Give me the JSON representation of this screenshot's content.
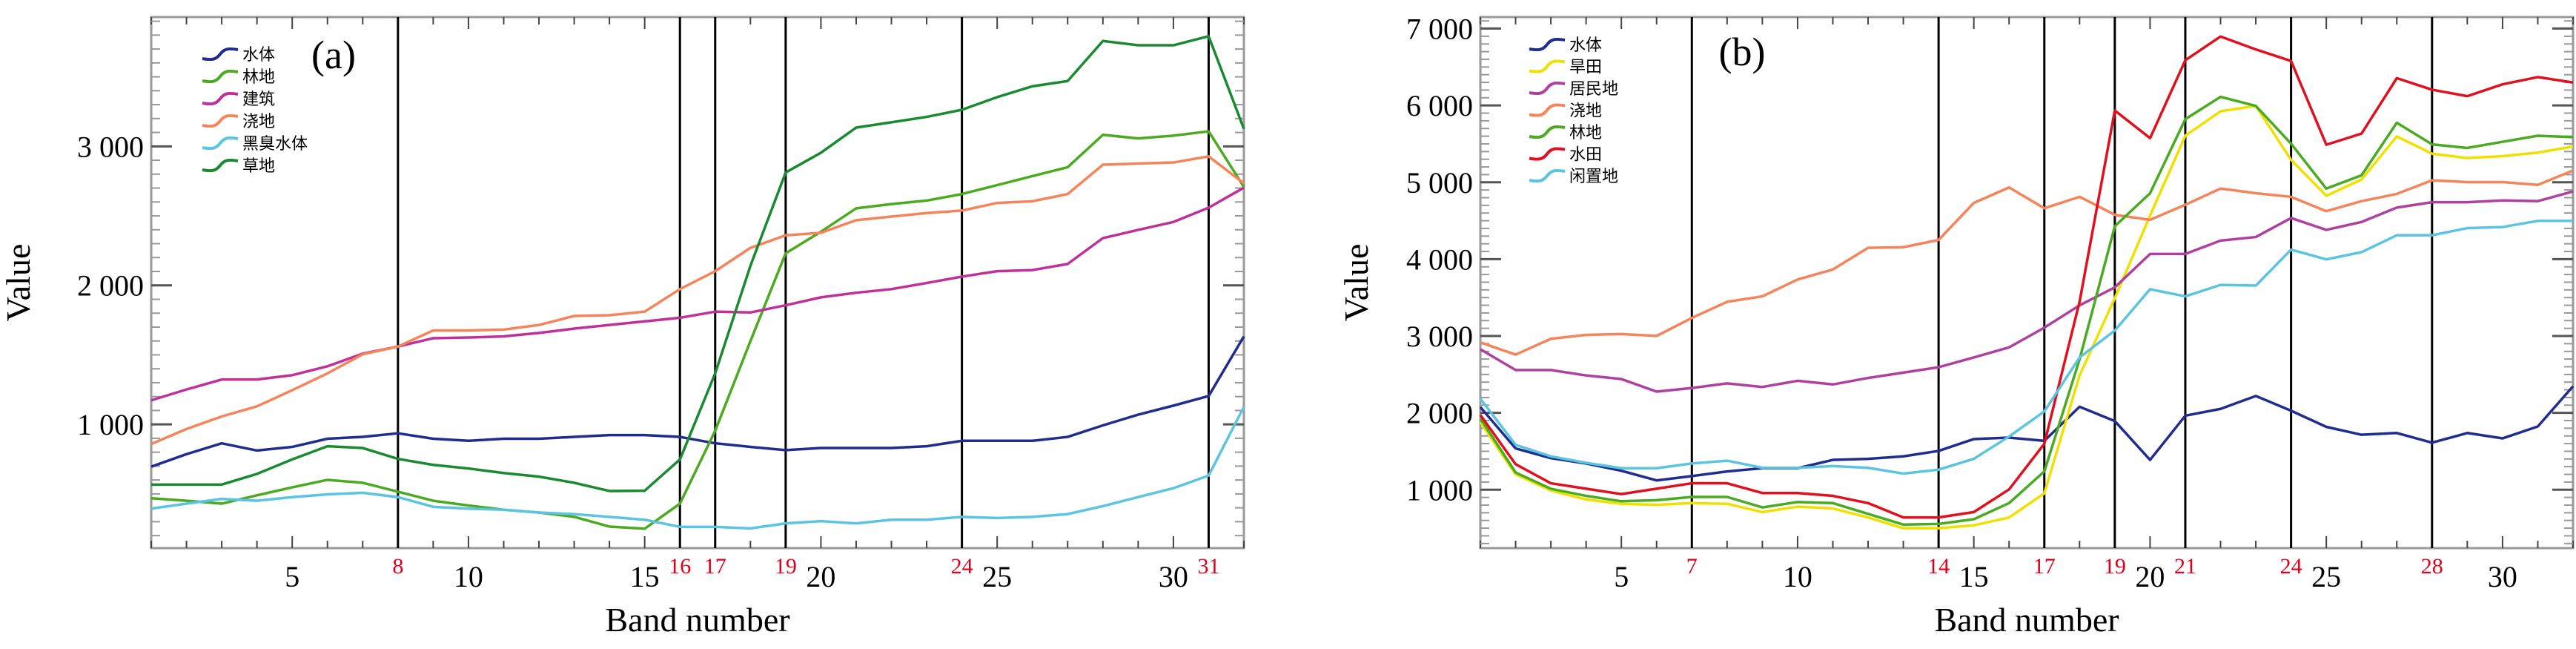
{
  "chart_data": [
    {
      "type": "line",
      "panel_label": "(a)",
      "xlabel": "Band number",
      "ylabel": "Value",
      "xlim": [
        1,
        32
      ],
      "ylim": [
        110,
        3930
      ],
      "xticks": [
        5,
        10,
        15,
        20,
        25,
        30
      ],
      "xtick_labels": [
        "5",
        "10",
        "15",
        "20",
        "25",
        "30"
      ],
      "yticks": [
        1000,
        2000,
        3000
      ],
      "ytick_labels": [
        "1 000",
        "2 000",
        "3 000"
      ],
      "highlight_bands": [
        8,
        16,
        17,
        19,
        24,
        31
      ],
      "highlight_band_labels": [
        "8",
        "16",
        "17",
        "19",
        "24",
        "31"
      ],
      "legend_position": "top-left",
      "x": [
        1,
        2,
        3,
        4,
        5,
        6,
        7,
        8,
        9,
        10,
        11,
        12,
        13,
        14,
        15,
        16,
        17,
        18,
        19,
        20,
        21,
        22,
        23,
        24,
        25,
        26,
        27,
        28,
        29,
        30,
        31,
        32
      ],
      "series": [
        {
          "name": "水体",
          "color": "#1f2d8f",
          "values": [
            696,
            786,
            864,
            812,
            838,
            897,
            910,
            936,
            897,
            882,
            897,
            897,
            910,
            923,
            923,
            910,
            864,
            838,
            815,
            830,
            830,
            830,
            843,
            882,
            882,
            882,
            910,
            993,
            1070,
            1135,
            1204,
            1633
          ]
        },
        {
          "name": "林地",
          "color": "#4aaa20",
          "values": [
            469,
            451,
            430,
            490,
            547,
            601,
            580,
            516,
            451,
            417,
            386,
            366,
            335,
            265,
            250,
            430,
            954,
            1599,
            2231,
            2386,
            2554,
            2585,
            2610,
            2657,
            2721,
            2786,
            2850,
            3083,
            3057,
            3077,
            3108,
            2708
          ]
        },
        {
          "name": "建筑",
          "color": "#c0309a",
          "values": [
            1173,
            1251,
            1323,
            1323,
            1354,
            1418,
            1509,
            1560,
            1620,
            1625,
            1633,
            1658,
            1689,
            1715,
            1741,
            1767,
            1811,
            1805,
            1857,
            1914,
            1947,
            1973,
            2017,
            2063,
            2102,
            2110,
            2154,
            2340,
            2399,
            2456,
            2559,
            2703
          ]
        },
        {
          "name": "浇地",
          "color": "#f5845a",
          "values": [
            859,
            967,
            1057,
            1130,
            1246,
            1367,
            1504,
            1560,
            1676,
            1676,
            1682,
            1715,
            1780,
            1785,
            1811,
            1973,
            2102,
            2270,
            2360,
            2378,
            2469,
            2495,
            2520,
            2538,
            2593,
            2605,
            2657,
            2868,
            2876,
            2884,
            2928,
            2734
          ]
        },
        {
          "name": "黑臭水体",
          "color": "#5bc4e0",
          "values": [
            394,
            430,
            464,
            451,
            477,
            497,
            508,
            477,
            407,
            394,
            386,
            366,
            355,
            335,
            314,
            263,
            263,
            252,
            288,
            304,
            288,
            314,
            314,
            335,
            327,
            335,
            355,
            412,
            477,
            541,
            632,
            1127
          ]
        },
        {
          "name": "草地",
          "color": "#1a8a30",
          "values": [
            567,
            567,
            567,
            644,
            748,
            843,
            830,
            752,
            709,
            683,
            650,
            624,
            580,
            521,
            523,
            748,
            1367,
            2141,
            2812,
            2954,
            3135,
            3173,
            3212,
            3263,
            3354,
            3432,
            3470,
            3758,
            3727,
            3727,
            3792,
            3126
          ]
        }
      ]
    },
    {
      "type": "line",
      "panel_label": "(b)",
      "xlabel": "Band number",
      "ylabel": "Value",
      "xlim": [
        1,
        32
      ],
      "ylim": [
        240,
        7150
      ],
      "xticks": [
        5,
        10,
        15,
        20,
        25,
        30
      ],
      "xtick_labels": [
        "5",
        "10",
        "15",
        "20",
        "25",
        "30"
      ],
      "yticks": [
        1000,
        2000,
        3000,
        4000,
        5000,
        6000,
        7000
      ],
      "ytick_labels": [
        "1 000",
        "2 000",
        "3 000",
        "4 000",
        "5 000",
        "6 000",
        "7 000"
      ],
      "highlight_bands": [
        7,
        14,
        17,
        19,
        21,
        24,
        28
      ],
      "highlight_band_labels": [
        "7",
        "14",
        "17",
        "19",
        "21",
        "24",
        "28"
      ],
      "legend_position": "top-left",
      "x": [
        1,
        2,
        3,
        4,
        5,
        6,
        7,
        8,
        9,
        10,
        11,
        12,
        13,
        14,
        15,
        16,
        17,
        18,
        19,
        20,
        21,
        22,
        23,
        24,
        25,
        26,
        27,
        28,
        29,
        30,
        31,
        32
      ],
      "series": [
        {
          "name": "水体",
          "color": "#1f2d8f",
          "values": [
            2075,
            1537,
            1411,
            1341,
            1247,
            1121,
            1177,
            1238,
            1280,
            1280,
            1388,
            1402,
            1434,
            1505,
            1659,
            1678,
            1636,
            2080,
            1893,
            1388,
            1963,
            2052,
            2220,
            2028,
            1818,
            1715,
            1738,
            1612,
            1738,
            1668,
            1823,
            2346
          ]
        },
        {
          "name": "旱田",
          "color": "#f0e000",
          "values": [
            1879,
            1200,
            990,
            873,
            817,
            803,
            826,
            817,
            709,
            780,
            756,
            639,
            499,
            499,
            537,
            639,
            953,
            2487,
            3492,
            4568,
            5606,
            5924,
            5994,
            5293,
            4825,
            5036,
            5597,
            5372,
            5316,
            5340,
            5386,
            5466
          ]
        },
        {
          "name": "居民地",
          "color": "#b040a0",
          "values": [
            2828,
            2557,
            2557,
            2487,
            2440,
            2276,
            2323,
            2384,
            2337,
            2417,
            2370,
            2454,
            2524,
            2594,
            2721,
            2852,
            3109,
            3399,
            3633,
            4068,
            4068,
            4241,
            4288,
            4535,
            4381,
            4484,
            4671,
            4741,
            4741,
            4764,
            4755,
            4881
          ]
        },
        {
          "name": "浇地",
          "color": "#f5845a",
          "values": [
            2917,
            2758,
            2964,
            3015,
            3025,
            3001,
            3235,
            3445,
            3516,
            3735,
            3866,
            4147,
            4156,
            4250,
            4732,
            4933,
            4662,
            4811,
            4577,
            4512,
            4708,
            4919,
            4858,
            4811,
            4624,
            4755,
            4849,
            5026,
            5003,
            5003,
            4966,
            5153
          ]
        },
        {
          "name": "林地",
          "color": "#4aaa20",
          "values": [
            1926,
            1224,
            1013,
            920,
            850,
            864,
            906,
            906,
            770,
            840,
            826,
            686,
            546,
            555,
            616,
            826,
            1238,
            2697,
            4428,
            4858,
            5822,
            6112,
            5994,
            5503,
            4918,
            5091,
            5775,
            5494,
            5447,
            5527,
            5606,
            5588
          ]
        },
        {
          "name": "水田",
          "color": "#e0101e",
          "values": [
            1972,
            1332,
            1084,
            1013,
            943,
            1013,
            1084,
            1084,
            957,
            957,
            920,
            826,
            639,
            639,
            709,
            1004,
            1598,
            3446,
            5934,
            5574,
            6588,
            6897,
            6729,
            6579,
            5489,
            5634,
            6355,
            6205,
            6121,
            6275,
            6369,
            6298
          ]
        },
        {
          "name": "闲置地",
          "color": "#5bc4e0",
          "values": [
            2183,
            1584,
            1434,
            1350,
            1280,
            1280,
            1341,
            1378,
            1285,
            1285,
            1308,
            1285,
            1210,
            1261,
            1402,
            1692,
            2019,
            2721,
            3071,
            3609,
            3516,
            3665,
            3656,
            4124,
            3997,
            4091,
            4311,
            4311,
            4404,
            4418,
            4498,
            4498
          ]
        }
      ]
    }
  ]
}
